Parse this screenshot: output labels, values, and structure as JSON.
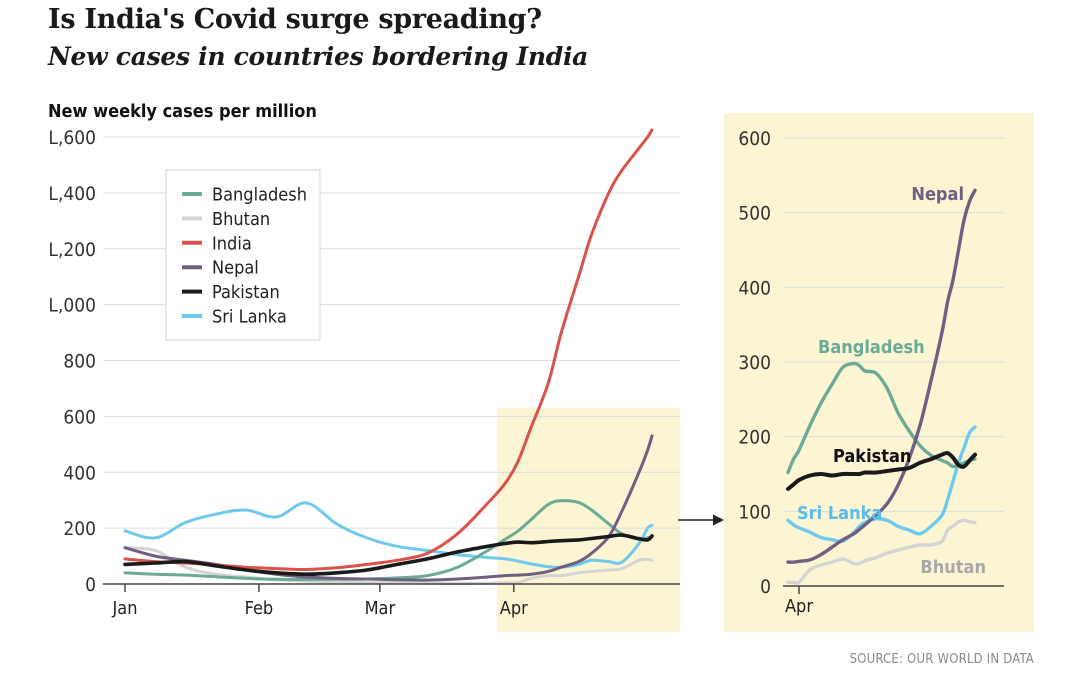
{
  "title": "Is India's Covid surge spreading?",
  "subtitle": "New cases in countries bordering India",
  "source": "SOURCE: OUR WORLD IN DATA",
  "colors": {
    "Bangladesh": "#6aaa96",
    "Bhutan": "#d4d4d4",
    "India": "#d9534a",
    "Nepal": "#6f5f80",
    "Pakistan": "#1a1a1a",
    "Sri Lanka": "#6ec9ec",
    "highlight": "#fbf5d3",
    "grid": "#dddddd",
    "axis": "#444444",
    "tick_text": "#333333"
  },
  "chart_data": [
    {
      "type": "line",
      "title": "New weekly cases per million",
      "xlabel": "",
      "ylabel": "New weekly cases per million",
      "xlim": [
        0,
        122
      ],
      "ylim": [
        0,
        1600
      ],
      "yticks": [
        0,
        200,
        400,
        600,
        800,
        1000,
        1200,
        1400,
        1600
      ],
      "ytick_labels": [
        "0",
        "200",
        "400",
        "600",
        "800",
        "L,000",
        "L,200",
        "L,400",
        "L,600"
      ],
      "xticks": [
        {
          "x": 0,
          "label": "Jan"
        },
        {
          "x": 31,
          "label": "Feb"
        },
        {
          "x": 59,
          "label": "Mar"
        },
        {
          "x": 90,
          "label": "Apr"
        }
      ],
      "highlight_x": [
        88,
        122
      ],
      "legend": {
        "placement": "top-left",
        "entries": [
          "Bangladesh",
          "Bhutan",
          "India",
          "Nepal",
          "Pakistan",
          "Sri Lanka"
        ]
      },
      "x": [
        0,
        7,
        14,
        21,
        28,
        35,
        42,
        49,
        56,
        63,
        70,
        77,
        84,
        88,
        91,
        94,
        98,
        101,
        105,
        108,
        112,
        115,
        119,
        121,
        122
      ],
      "series": [
        {
          "name": "Bangladesh",
          "values": [
            40,
            35,
            32,
            26,
            20,
            17,
            16,
            17,
            18,
            22,
            30,
            60,
            120,
            160,
            190,
            230,
            285,
            298,
            292,
            265,
            215,
            180,
            160,
            165,
            170
          ]
        },
        {
          "name": "Bhutan",
          "values": [
            130,
            120,
            60,
            35,
            25,
            15,
            10,
            8,
            5,
            5,
            3,
            2,
            3,
            5,
            5,
            20,
            30,
            30,
            40,
            45,
            50,
            55,
            85,
            88,
            85
          ]
        },
        {
          "name": "India",
          "values": [
            90,
            80,
            75,
            68,
            60,
            55,
            52,
            58,
            70,
            85,
            110,
            180,
            290,
            360,
            440,
            560,
            720,
            900,
            1100,
            1250,
            1400,
            1480,
            1560,
            1600,
            1625
          ]
        },
        {
          "name": "Nepal",
          "values": [
            130,
            100,
            85,
            70,
            50,
            35,
            25,
            20,
            18,
            15,
            14,
            18,
            25,
            30,
            32,
            35,
            45,
            60,
            80,
            110,
            170,
            260,
            400,
            480,
            530
          ]
        },
        {
          "name": "Pakistan",
          "values": [
            70,
            75,
            80,
            65,
            50,
            40,
            35,
            40,
            50,
            70,
            90,
            115,
            135,
            145,
            150,
            148,
            152,
            155,
            158,
            163,
            170,
            175,
            162,
            158,
            172
          ]
        },
        {
          "name": "Sri Lanka",
          "values": [
            190,
            165,
            220,
            250,
            265,
            240,
            290,
            215,
            165,
            135,
            120,
            105,
            95,
            90,
            82,
            72,
            62,
            60,
            70,
            85,
            80,
            78,
            145,
            200,
            210
          ]
        }
      ]
    },
    {
      "type": "line",
      "title": "",
      "xlabel": "",
      "ylabel": "New weekly cases per million",
      "xlim": [
        88,
        122
      ],
      "ylim": [
        0,
        600
      ],
      "yticks": [
        0,
        100,
        200,
        300,
        400,
        500,
        600
      ],
      "xticks": [
        {
          "x": 90,
          "label": "Apr"
        }
      ],
      "annotations": [
        {
          "series": "Nepal",
          "label": "Nepal"
        },
        {
          "series": "Bangladesh",
          "label": "Bangladesh"
        },
        {
          "series": "Pakistan",
          "label": "Pakistan"
        },
        {
          "series": "Sri Lanka",
          "label": "Sri Lanka"
        },
        {
          "series": "Bhutan",
          "label": "Bhutan"
        }
      ],
      "x": [
        88,
        89,
        90,
        92,
        94,
        96,
        98,
        100,
        101,
        102,
        104,
        106,
        108,
        110,
        112,
        114,
        116,
        117,
        118,
        119,
        120,
        121,
        122
      ],
      "series": [
        {
          "name": "Bangladesh",
          "values": [
            152,
            170,
            182,
            215,
            245,
            270,
            293,
            298,
            295,
            288,
            285,
            265,
            232,
            208,
            188,
            175,
            168,
            165,
            160,
            162,
            165,
            168,
            170
          ]
        },
        {
          "name": "Bhutan",
          "values": [
            5,
            5,
            5,
            22,
            28,
            32,
            36,
            30,
            30,
            34,
            38,
            44,
            48,
            52,
            55,
            55,
            60,
            75,
            80,
            86,
            88,
            86,
            85
          ]
        },
        {
          "name": "Nepal",
          "values": [
            32,
            32,
            33,
            35,
            42,
            52,
            62,
            70,
            76,
            82,
            95,
            110,
            135,
            170,
            215,
            275,
            340,
            380,
            410,
            450,
            490,
            515,
            530
          ]
        },
        {
          "name": "Pakistan",
          "values": [
            130,
            136,
            142,
            148,
            150,
            148,
            150,
            150,
            150,
            152,
            152,
            154,
            156,
            158,
            165,
            170,
            176,
            178,
            172,
            162,
            160,
            168,
            176
          ]
        },
        {
          "name": "Sri Lanka",
          "values": [
            88,
            82,
            78,
            72,
            65,
            62,
            60,
            72,
            80,
            85,
            90,
            88,
            80,
            75,
            70,
            80,
            95,
            115,
            140,
            165,
            185,
            205,
            213
          ]
        }
      ]
    }
  ]
}
